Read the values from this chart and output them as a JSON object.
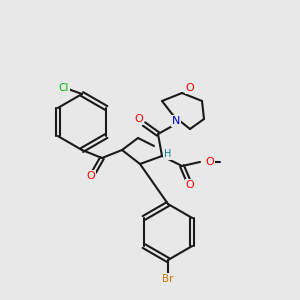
{
  "bg_color": "#e8e8e8",
  "bond_color": "#1a1a1a",
  "bond_width": 1.5,
  "atom_colors": {
    "O": "#ff0000",
    "N": "#0000cc",
    "Cl": "#00bb00",
    "Br": "#cc7700",
    "H": "#008888",
    "C": "#1a1a1a"
  },
  "font_size": 7.5
}
